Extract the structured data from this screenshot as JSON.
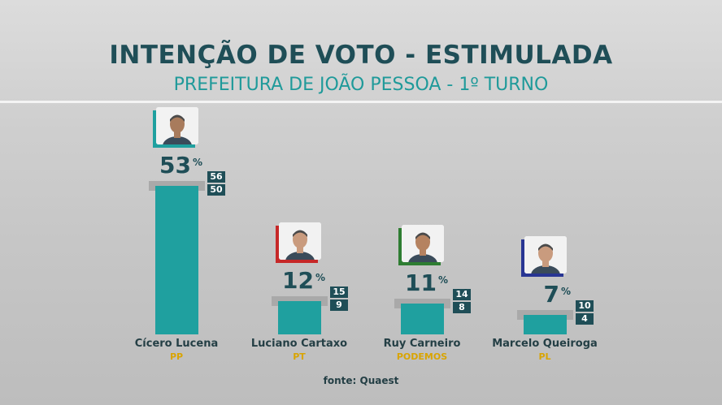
{
  "chart_data": {
    "type": "bar",
    "title": "INTENÇÃO DE VOTO - ESTIMULADA",
    "subtitle": "PREFEITURA DE JOÃO PESSOA - 1º TURNO",
    "categories": [
      "Cícero Lucena",
      "Luciano Cartaxo",
      "Ruy Carneiro",
      "Marcelo Queiroga"
    ],
    "parties": [
      "PP",
      "PT",
      "PODEMOS",
      "PL"
    ],
    "values": [
      53,
      12,
      11,
      7
    ],
    "value_labels": [
      "53",
      "12",
      "11",
      "7"
    ],
    "unit": "%",
    "range_high": [
      "56",
      "15",
      "14",
      "10"
    ],
    "range_low": [
      "50",
      "9",
      "8",
      "4"
    ],
    "source": "fonte: Quaest",
    "colors": {
      "bar": "#1fa09f",
      "title": "#1f4e57",
      "subtitle": "#1f9a9a",
      "party": "#d9a400",
      "range_box": "#1f4e57"
    },
    "photo_accents": [
      "#1fa09f",
      "#c62828",
      "#2e7d32",
      "#283593"
    ]
  }
}
